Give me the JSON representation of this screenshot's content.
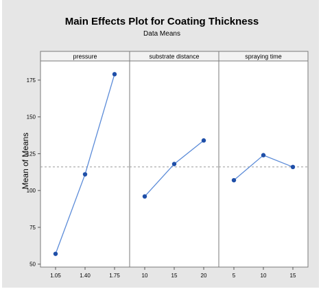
{
  "chart_data": {
    "type": "line",
    "title": "Main Effects Plot for Coating Thickness",
    "subtitle": "Data Means",
    "ylabel": "Mean of Means",
    "ylim": [
      48,
      188
    ],
    "yticks": [
      50,
      75,
      100,
      125,
      150,
      175
    ],
    "grand_mean": 116,
    "grid": false,
    "colors": {
      "line": "#5b8bd8",
      "marker": "#1f4fa8",
      "ref_line": "#9a9a9a",
      "panel_bg": "#ffffff",
      "figure_bg": "#e6e6e6",
      "header_bg": "#f2f2f2"
    },
    "panels": [
      {
        "factor": "pressure",
        "categories": [
          "1.05",
          "1.40",
          "1.75"
        ],
        "values": [
          57,
          111,
          179
        ]
      },
      {
        "factor": "substrate distance",
        "categories": [
          "10",
          "15",
          "20"
        ],
        "values": [
          96,
          118,
          134
        ]
      },
      {
        "factor": "spraying time",
        "categories": [
          "5",
          "10",
          "15"
        ],
        "values": [
          107,
          124,
          116
        ]
      }
    ]
  }
}
